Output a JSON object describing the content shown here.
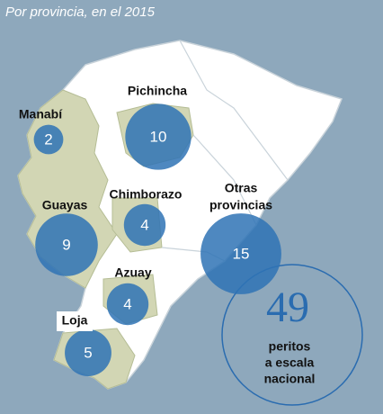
{
  "subtitle": "Por provincia, en el 2015",
  "provinces": [
    {
      "name": [
        "Manabí"
      ],
      "value": 2
    },
    {
      "name": [
        "Pichincha"
      ],
      "value": 10
    },
    {
      "name": [
        "Chimborazo"
      ],
      "value": 4
    },
    {
      "name": [
        "Guayas"
      ],
      "value": 9
    },
    {
      "name": [
        "Otras",
        "provincias"
      ],
      "value": 15
    },
    {
      "name": [
        "Azuay"
      ],
      "value": 4
    },
    {
      "name": [
        "Loja"
      ],
      "value": 5
    }
  ],
  "total": {
    "value": 49,
    "lines": [
      "peritos",
      "a escala",
      "nacional"
    ]
  }
}
